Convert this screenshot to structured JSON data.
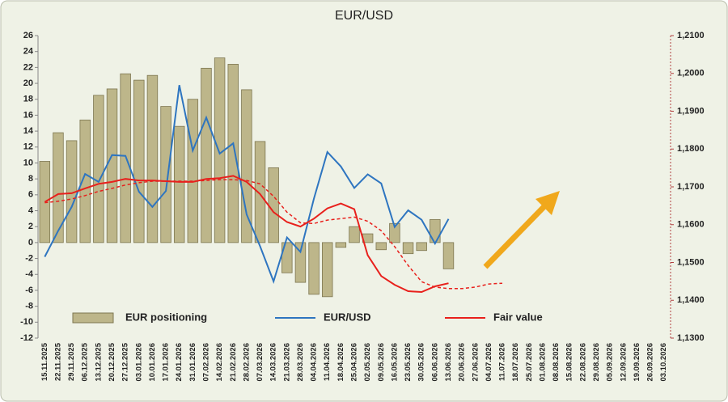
{
  "chart_data": {
    "type": "bar_line",
    "title": "EUR/USD",
    "categories": [
      "15.11.2025",
      "22.11.2025",
      "29.11.2025",
      "06.12.2025",
      "13.12.2025",
      "20.12.2025",
      "27.12.2025",
      "03.01.2026",
      "10.01.2026",
      "17.01.2026",
      "24.01.2026",
      "31.01.2026",
      "07.02.2026",
      "14.02.2026",
      "21.02.2026",
      "28.02.2026",
      "07.03.2026",
      "14.03.2026",
      "21.03.2026",
      "28.03.2026",
      "04.04.2026",
      "11.04.2026",
      "18.04.2026",
      "25.04.2026",
      "02.05.2026",
      "09.05.2026",
      "16.05.2026",
      "23.05.2026",
      "30.05.2026",
      "06.06.2026",
      "13.06.2026",
      "20.06.2026",
      "27.06.2026",
      "04.07.2026",
      "11.07.2026",
      "18.07.2026",
      "25.07.2026",
      "01.08.2026",
      "08.08.2026",
      "15.08.2026",
      "22.08.2026",
      "29.08.2026",
      "05.09.2026",
      "12.09.2026",
      "19.09.2026",
      "26.09.2026",
      "03.10.2026"
    ],
    "series": [
      {
        "name": "EUR positioning",
        "color": "#bdb68a",
        "kind": "bar",
        "axis": "y",
        "values": [
          10.2,
          13.8,
          12.8,
          15.4,
          18.5,
          19.3,
          21.2,
          20.4,
          21.0,
          17.1,
          14.6,
          18.0,
          21.9,
          23.2,
          22.4,
          19.2,
          12.7,
          9.4,
          -3.8,
          -5.0,
          -6.5,
          -6.8,
          -0.6,
          2.0,
          1.1,
          -0.9,
          2.4,
          -1.4,
          -1.0,
          2.9,
          -3.3,
          null,
          null,
          null,
          null,
          null,
          null,
          null,
          null,
          null,
          null,
          null,
          null,
          null,
          null,
          null,
          null
        ]
      },
      {
        "name": "EUR/USD",
        "color": "#2e75c0",
        "kind": "line",
        "axis": "y2",
        "values": [
          1.1515,
          1.1584,
          1.1647,
          1.1734,
          1.1713,
          1.1784,
          1.1782,
          1.1687,
          1.1647,
          1.1689,
          1.1969,
          1.1796,
          1.1883,
          1.1788,
          1.1815,
          1.1627,
          1.1543,
          1.145,
          1.1566,
          1.1528,
          1.1669,
          1.1792,
          1.1754,
          1.1697,
          1.1733,
          1.1709,
          1.1594,
          1.1638,
          1.1613,
          1.155,
          1.1615,
          null,
          null,
          null,
          null,
          null,
          null,
          null,
          null,
          null,
          null,
          null,
          null,
          null,
          null,
          null,
          null
        ]
      },
      {
        "name": "Fair value",
        "color": "#e8201c",
        "kind": "line",
        "axis": "y2",
        "values": [
          1.166,
          1.1681,
          1.1683,
          1.1696,
          1.1708,
          1.1713,
          1.1721,
          1.1717,
          1.1717,
          1.1715,
          1.1713,
          1.1713,
          1.1721,
          1.1723,
          1.1729,
          1.1713,
          1.1681,
          1.1633,
          1.1607,
          1.1595,
          1.1616,
          1.1643,
          1.1656,
          1.1641,
          1.1519,
          1.1464,
          1.1441,
          1.1424,
          1.1422,
          1.1437,
          1.1445,
          null,
          null,
          null,
          null,
          null,
          null,
          null,
          null,
          null,
          null,
          null,
          null,
          null,
          null,
          null,
          null
        ],
        "forecast": [
          1.1658,
          1.1662,
          1.1668,
          1.1677,
          1.1688,
          1.1696,
          1.1705,
          1.1711,
          1.1715,
          1.1715,
          1.1715,
          1.1715,
          1.1717,
          1.1719,
          1.1719,
          1.1717,
          1.1708,
          1.1675,
          1.1633,
          1.1605,
          1.1603,
          1.1612,
          1.1616,
          1.162,
          1.1609,
          1.1584,
          1.1542,
          1.1492,
          1.1449,
          1.1435,
          1.1431,
          1.1431,
          1.1435,
          1.1443,
          1.1445,
          null,
          null,
          null,
          null,
          null,
          null,
          null,
          null,
          null,
          null,
          null,
          null
        ]
      }
    ],
    "ylim": [
      -12,
      26
    ],
    "yticks": [
      -12,
      -10,
      -8,
      -6,
      -4,
      -2,
      0,
      2,
      4,
      6,
      8,
      10,
      12,
      14,
      16,
      18,
      20,
      22,
      24,
      26
    ],
    "y2lim": [
      1.13,
      1.21
    ],
    "y2ticks": [
      {
        "value": 1.13,
        "label": "1,1300"
      },
      {
        "value": 1.14,
        "label": "1,1400"
      },
      {
        "value": 1.15,
        "label": "1,1500"
      },
      {
        "value": 1.16,
        "label": "1,1600"
      },
      {
        "value": 1.17,
        "label": "1,1700"
      },
      {
        "value": 1.18,
        "label": "1,1800"
      },
      {
        "value": 1.19,
        "label": "1,1900"
      },
      {
        "value": 1.2,
        "label": "1,2000"
      },
      {
        "value": 1.21,
        "label": "1,2100"
      }
    ],
    "grid": false
  }
}
